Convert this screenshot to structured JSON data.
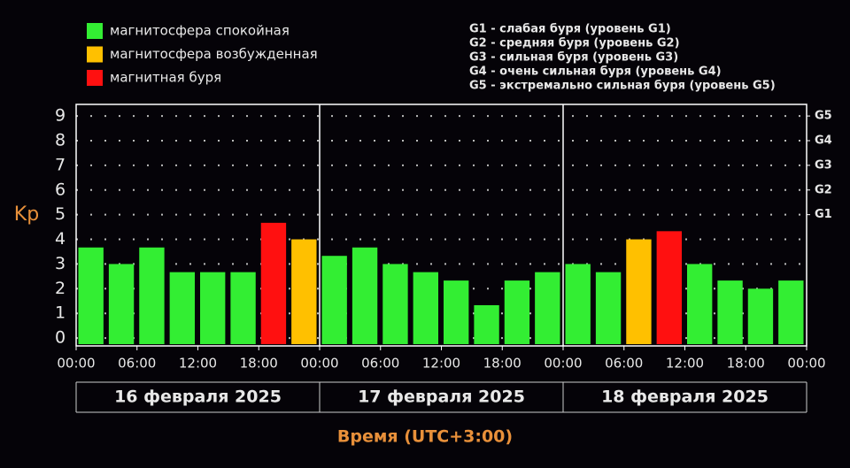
{
  "chart_data": {
    "type": "bar",
    "legend": [
      {
        "name": "магнитосфера спокойная",
        "color": "#33ee33"
      },
      {
        "name": "магнитосфера возбужденная",
        "color": "#ffc000"
      },
      {
        "name": "магнитная буря",
        "color": "#ff1010"
      }
    ],
    "storm_levels": [
      "G1 - слабая буря (уровень G1)",
      "G2 - средняя буря (уровень G2)",
      "G3 - сильная буря (уровень G3)",
      "G4 - очень сильная буря (уровень G4)",
      "G5 - экстремально сильная буря (уровень G5)"
    ],
    "y_label": "Kp",
    "x_label": "Время (UTC+3:00)",
    "days": [
      "16 февраля 2025",
      "17 февраля 2025",
      "18 февраля 2025"
    ],
    "x": [
      0,
      3,
      6,
      9,
      12,
      15,
      18,
      21,
      24,
      27,
      30,
      33,
      36,
      39,
      42,
      45,
      48,
      51,
      54,
      57,
      60,
      63,
      66,
      69
    ],
    "values": [
      3.67,
      3,
      3.67,
      2.67,
      2.67,
      2.67,
      4.67,
      4,
      3.33,
      3.67,
      3,
      2.67,
      2.33,
      1.33,
      2.33,
      2.67,
      3,
      2.67,
      4,
      4.33,
      3,
      2.33,
      2,
      2.33
    ],
    "colors": [
      "#33ee33",
      "#33ee33",
      "#33ee33",
      "#33ee33",
      "#33ee33",
      "#33ee33",
      "#ff1010",
      "#ffc000",
      "#33ee33",
      "#33ee33",
      "#33ee33",
      "#33ee33",
      "#33ee33",
      "#33ee33",
      "#33ee33",
      "#33ee33",
      "#33ee33",
      "#33ee33",
      "#ffc000",
      "#ff1010",
      "#33ee33",
      "#33ee33",
      "#33ee33",
      "#33ee33"
    ],
    "bar_width": 3,
    "xlim": [
      0,
      72
    ],
    "xticks": [
      {
        "value": 0,
        "label": "00:00"
      },
      {
        "value": 6,
        "label": "06:00"
      },
      {
        "value": 12,
        "label": "12:00"
      },
      {
        "value": 18,
        "label": "18:00"
      },
      {
        "value": 24,
        "label": "00:00"
      },
      {
        "value": 30,
        "label": "06:00"
      },
      {
        "value": 36,
        "label": "12:00"
      },
      {
        "value": 42,
        "label": "18:00"
      },
      {
        "value": 48,
        "label": "00:00"
      },
      {
        "value": 54,
        "label": "06:00"
      },
      {
        "value": 60,
        "label": "12:00"
      },
      {
        "value": 66,
        "label": "18:00"
      },
      {
        "value": 72,
        "label": "00:00"
      }
    ],
    "ylim": [
      -0.32,
      9.47
    ],
    "yticks": [
      0,
      1,
      2,
      3,
      4,
      5,
      6,
      7,
      8,
      9
    ],
    "y2lim": [
      -0.32,
      9.47
    ],
    "y2ticks": [
      {
        "value": 5,
        "label": "G1"
      },
      {
        "value": 6,
        "label": "G2"
      },
      {
        "value": 7,
        "label": "G3"
      },
      {
        "value": 8,
        "label": "G4"
      },
      {
        "value": 9,
        "label": "G5"
      }
    ],
    "grid": true
  }
}
